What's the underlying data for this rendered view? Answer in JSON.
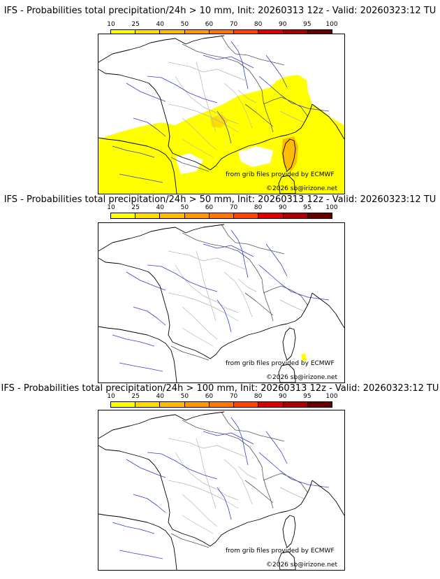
{
  "panels": [
    {
      "title": "IFS - Probabilities total precipitation/24h > 10 mm, Init: 20260313 12z - Valid: 20260323:12 TU",
      "has_precip": true
    },
    {
      "title": "IFS - Probabilities total precipitation/24h > 50 mm, Init: 20260313 12z - Valid: 20260323:12 TU",
      "has_precip": false
    },
    {
      "title": "IFS - Probabilities total precipitation/24h > 100 mm, Init: 20260313 12z - Valid: 20260323:12 TU",
      "has_precip": false
    }
  ],
  "colorbar": {
    "ticks": [
      "10",
      "25",
      "40",
      "50",
      "60",
      "70",
      "80",
      "90",
      "95",
      "100"
    ],
    "colors": [
      "#ffff00",
      "#ffdd00",
      "#ffbb00",
      "#ff9900",
      "#ff7700",
      "#ff4400",
      "#dd0000",
      "#aa0000",
      "#660000"
    ]
  },
  "credits": {
    "grib": "from grib files provided by ECMWF",
    "copyright": "©2026 sb@irizone.net"
  }
}
